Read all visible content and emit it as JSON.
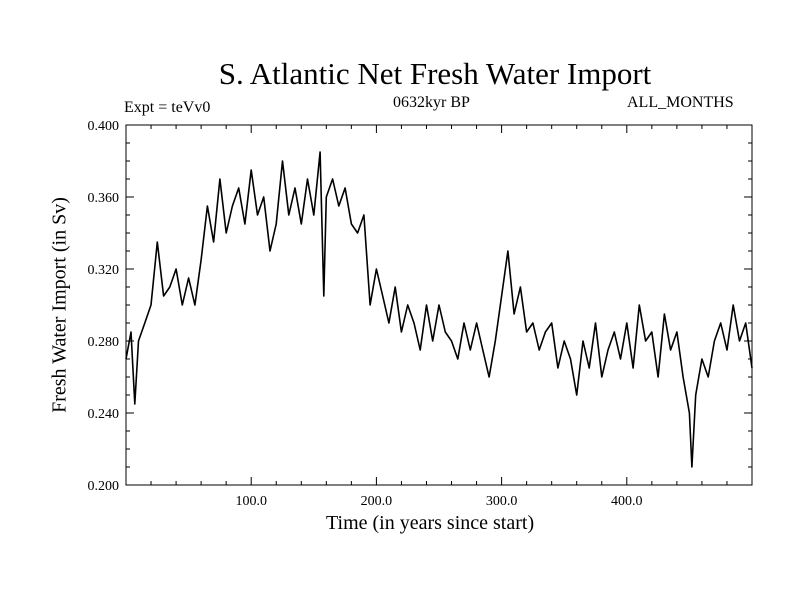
{
  "chart_data": {
    "type": "line",
    "title": "S. Atlantic Net Fresh Water Import",
    "left_label": "Expt = teVv0",
    "center_label": "0632kyr BP",
    "right_label": "ALL_MONTHS",
    "xlabel": "Time (in years since start)",
    "ylabel": "Fresh Water Import (in Sv)",
    "xlim": [
      0,
      500
    ],
    "ylim": [
      0.2,
      0.4
    ],
    "x_ticks": [
      100,
      200,
      300,
      400
    ],
    "x_tick_labels": [
      "100.0",
      "200.0",
      "300.0",
      "400.0"
    ],
    "y_ticks": [
      0.2,
      0.24,
      0.28,
      0.32,
      0.36,
      0.4
    ],
    "y_tick_labels": [
      "0.200",
      "0.240",
      "0.280",
      "0.320",
      "0.360",
      "0.400"
    ],
    "grid": false,
    "series": [
      {
        "name": "Fresh Water Import",
        "color": "#000000",
        "x": [
          0,
          4,
          7,
          10,
          15,
          20,
          25,
          30,
          35,
          40,
          45,
          50,
          55,
          60,
          65,
          70,
          75,
          80,
          85,
          90,
          95,
          100,
          105,
          110,
          115,
          120,
          125,
          130,
          135,
          140,
          145,
          150,
          155,
          158,
          160,
          165,
          170,
          175,
          180,
          185,
          190,
          195,
          200,
          205,
          210,
          215,
          220,
          225,
          230,
          235,
          240,
          245,
          250,
          255,
          260,
          265,
          270,
          275,
          280,
          285,
          290,
          295,
          300,
          305,
          310,
          315,
          320,
          325,
          330,
          335,
          340,
          345,
          350,
          355,
          360,
          365,
          370,
          375,
          380,
          385,
          390,
          395,
          400,
          405,
          410,
          415,
          420,
          425,
          430,
          435,
          440,
          445,
          450,
          452,
          455,
          460,
          465,
          470,
          475,
          480,
          485,
          490,
          495,
          500
        ],
        "values": [
          0.27,
          0.285,
          0.245,
          0.28,
          0.29,
          0.3,
          0.335,
          0.305,
          0.31,
          0.32,
          0.3,
          0.315,
          0.3,
          0.325,
          0.355,
          0.335,
          0.37,
          0.34,
          0.355,
          0.365,
          0.345,
          0.375,
          0.35,
          0.36,
          0.33,
          0.345,
          0.38,
          0.35,
          0.365,
          0.345,
          0.37,
          0.35,
          0.385,
          0.305,
          0.36,
          0.37,
          0.355,
          0.365,
          0.345,
          0.34,
          0.35,
          0.3,
          0.32,
          0.305,
          0.29,
          0.31,
          0.285,
          0.3,
          0.29,
          0.275,
          0.3,
          0.28,
          0.3,
          0.285,
          0.28,
          0.27,
          0.29,
          0.275,
          0.29,
          0.275,
          0.26,
          0.28,
          0.305,
          0.33,
          0.295,
          0.31,
          0.285,
          0.29,
          0.275,
          0.285,
          0.29,
          0.265,
          0.28,
          0.27,
          0.25,
          0.28,
          0.265,
          0.29,
          0.26,
          0.275,
          0.285,
          0.27,
          0.29,
          0.265,
          0.3,
          0.28,
          0.285,
          0.26,
          0.295,
          0.275,
          0.285,
          0.26,
          0.24,
          0.21,
          0.25,
          0.27,
          0.26,
          0.28,
          0.29,
          0.275,
          0.3,
          0.28,
          0.29,
          0.265
        ]
      }
    ]
  }
}
